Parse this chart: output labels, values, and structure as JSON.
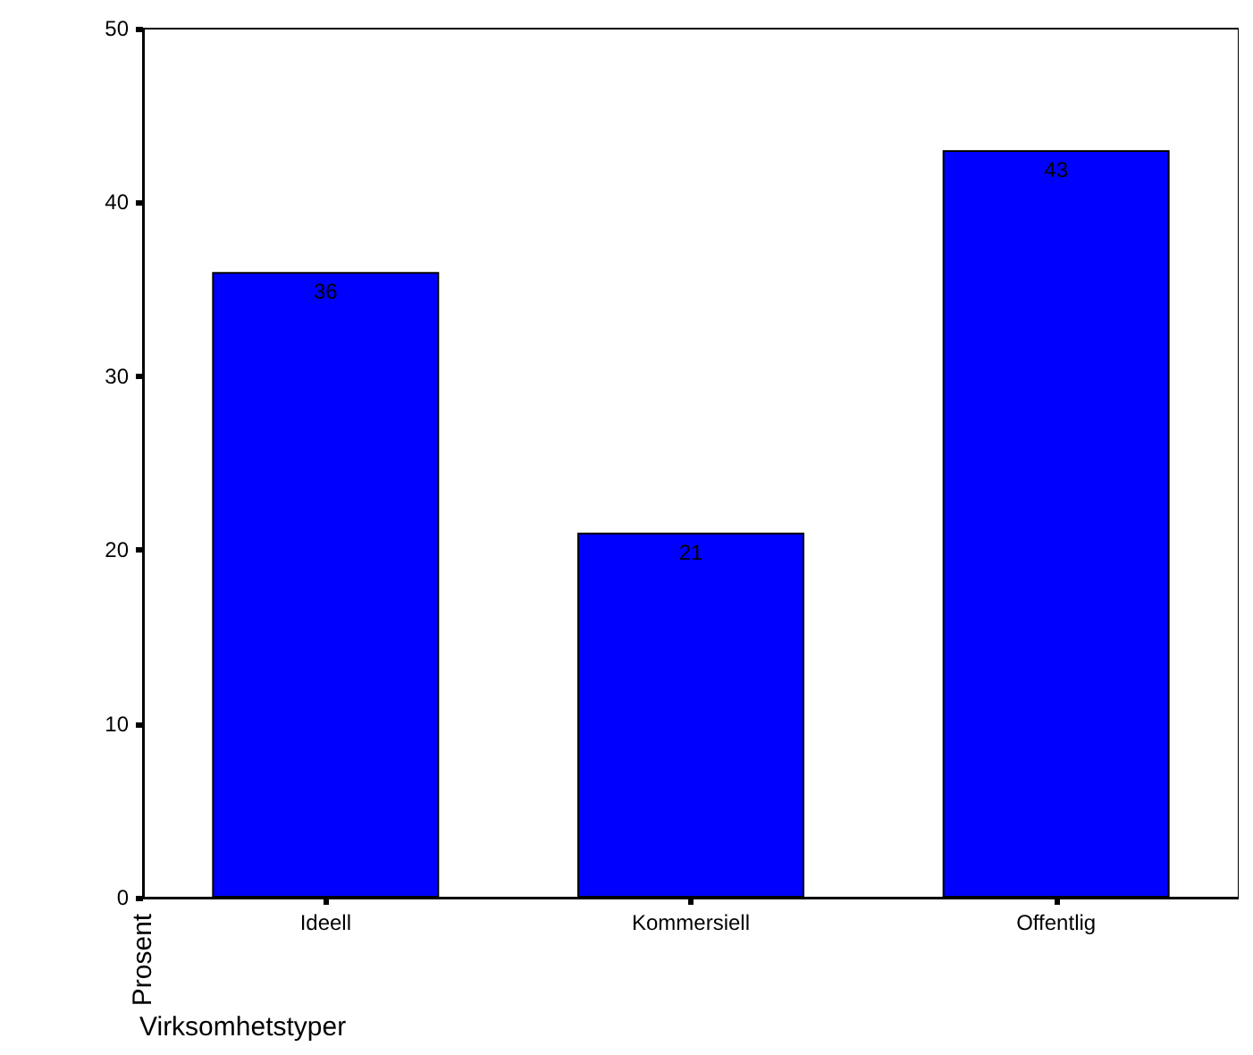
{
  "chart_data": {
    "type": "bar",
    "xlabel": "Virksomhetstyper",
    "ylabel": "Prosent",
    "categories": [
      "Ideell",
      "Kommersiell",
      "Offentlig"
    ],
    "values": [
      36,
      21,
      43
    ],
    "color": "#0000ff",
    "ylim": [
      0,
      50
    ],
    "yticks": [
      0,
      10,
      20,
      30,
      40,
      50
    ],
    "data_labels": true
  }
}
